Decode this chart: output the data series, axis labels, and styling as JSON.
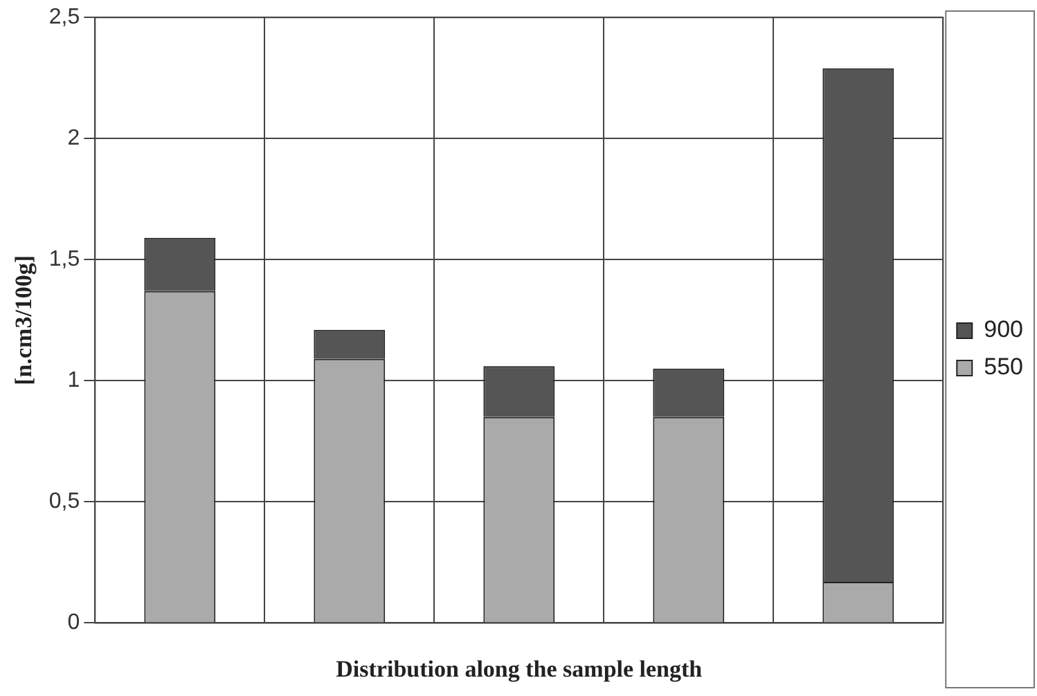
{
  "chart_data": {
    "type": "bar",
    "stacked": true,
    "xlabel": "Distribution along the sample length",
    "ylabel": "[n.cm3/100g]",
    "categories": [
      null,
      null,
      null,
      null,
      null
    ],
    "series": [
      {
        "name": "550",
        "color": "#aaaaaa",
        "values": [
          1.37,
          1.09,
          0.85,
          0.85,
          0.17
        ]
      },
      {
        "name": "900",
        "color": "#555555",
        "values": [
          0.22,
          0.12,
          0.21,
          0.2,
          2.12
        ]
      }
    ],
    "ylim": [
      0,
      2.5
    ],
    "yticks": [
      0,
      {
        "value": 0.5,
        "label": "0,5"
      },
      1,
      {
        "value": 1.5,
        "label": "1,5"
      },
      2,
      {
        "value": 2.5,
        "label": "2,5"
      }
    ],
    "grid": true,
    "legend": "right"
  }
}
